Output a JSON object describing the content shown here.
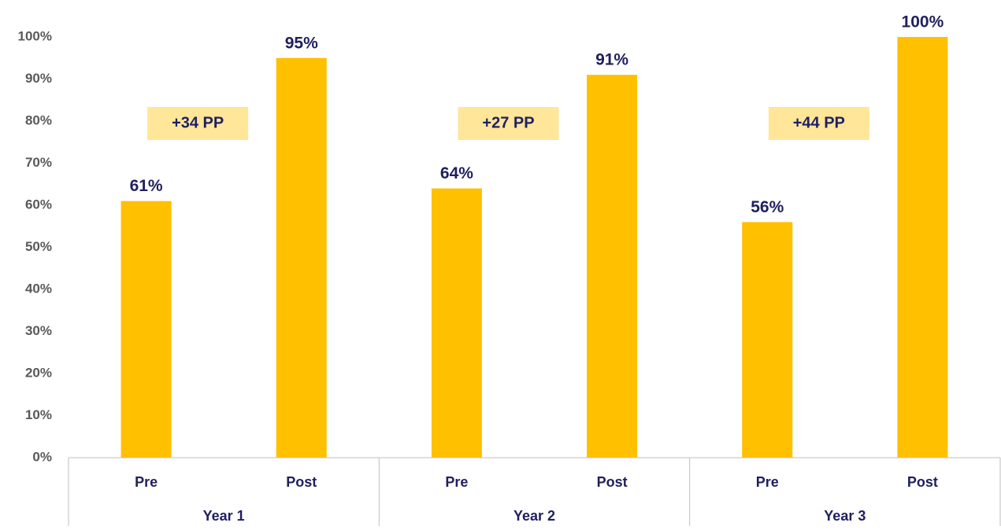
{
  "chart_data": {
    "type": "bar",
    "categories": [
      "Pre",
      "Post",
      "Pre",
      "Post",
      "Pre",
      "Post"
    ],
    "groups": [
      "Year 1",
      "Year 2",
      "Year 3"
    ],
    "values": [
      61,
      95,
      64,
      91,
      56,
      100
    ],
    "value_labels": [
      "61%",
      "95%",
      "64%",
      "91%",
      "56%",
      "100%"
    ],
    "color": "#FFC000",
    "annotations": [
      "+34 PP",
      "+27 PP",
      "+44 PP"
    ],
    "ylim": [
      0,
      100
    ],
    "yticks": [
      {
        "value": 0,
        "label": "0%"
      },
      {
        "value": 10,
        "label": "10%"
      },
      {
        "value": 20,
        "label": "20%"
      },
      {
        "value": 30,
        "label": "30%"
      },
      {
        "value": 40,
        "label": "40%"
      },
      {
        "value": 50,
        "label": "50%"
      },
      {
        "value": 60,
        "label": "60%"
      },
      {
        "value": 70,
        "label": "70%"
      },
      {
        "value": 80,
        "label": "80%"
      },
      {
        "value": 90,
        "label": "90%"
      },
      {
        "value": 100,
        "label": "100%"
      }
    ],
    "grid": false
  }
}
